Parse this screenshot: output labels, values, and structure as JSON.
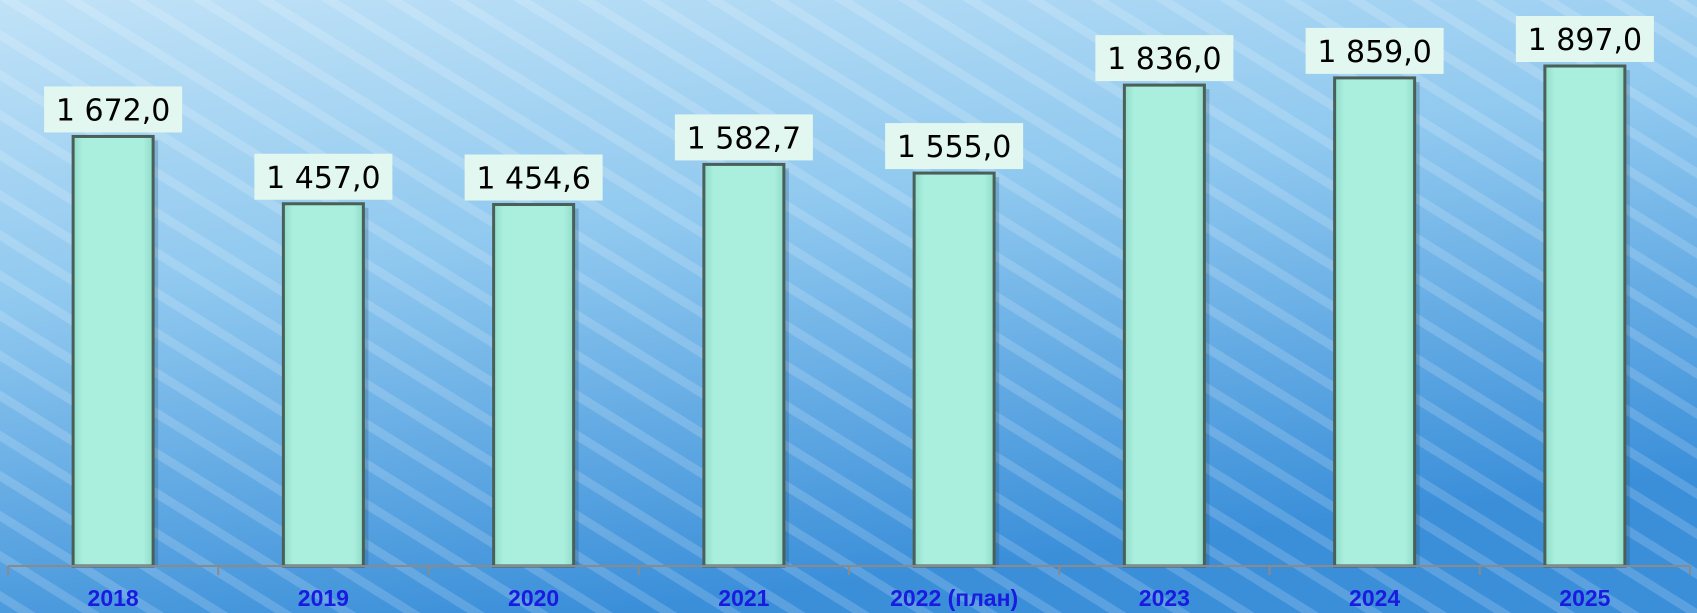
{
  "chart_data": {
    "type": "bar",
    "categories": [
      "2018",
      "2019",
      "2020",
      "2021",
      "2022 (план)",
      "2023",
      "2024",
      "2025"
    ],
    "values": [
      1672.0,
      1457.0,
      1454.6,
      1582.7,
      1555.0,
      1836.0,
      1859.0,
      1897.0
    ],
    "value_labels": [
      "1 672,0",
      "1 457,0",
      "1 454,6",
      "1 582,7",
      "1 555,0",
      "1 836,0",
      "1 859,0",
      "1 897,0"
    ],
    "ylim": [
      0,
      2000
    ],
    "grid": false,
    "legend": "none",
    "colors": {
      "bar_fill": "#a6ecdc",
      "bar_edge": "#4a5f57",
      "label_box": "#e2f7ef",
      "axis": "#8a8a8a",
      "category_text": "#1a1ae0",
      "background_top": "#b3dbf4",
      "background_bottom": "#3a8ed8"
    }
  }
}
